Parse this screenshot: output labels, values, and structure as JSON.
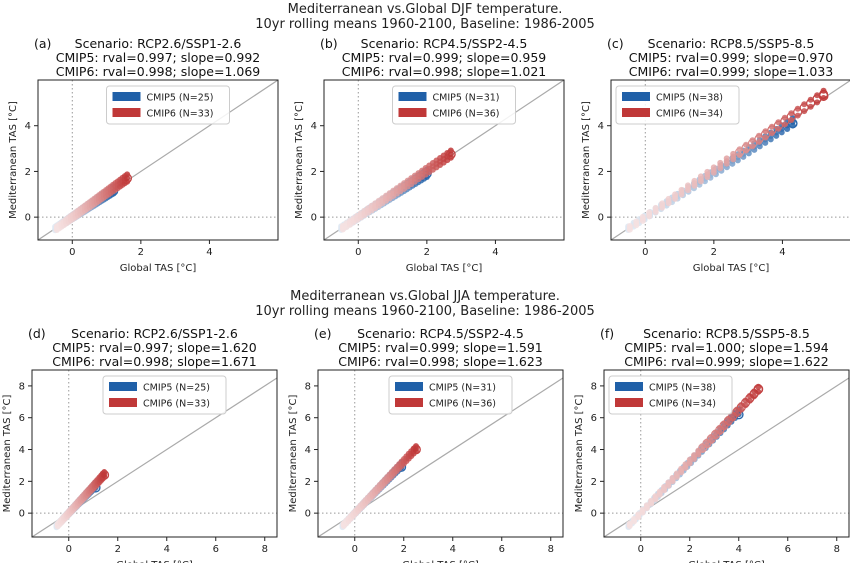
{
  "figure": {
    "rows": [
      {
        "title_line1": "Mediterranean vs.Global DJF temperature.",
        "title_line2": "10yr rolling means 1960-2100, Baseline: 1986-2005"
      },
      {
        "title_line1": "Mediterranean vs.Global JJA temperature.",
        "title_line2": "10yr rolling means 1960-2100, Baseline: 1986-2005"
      }
    ]
  },
  "colors": {
    "cmip5": "#2060a8",
    "cmip6": "#c03838",
    "diagonal": "#aaaaaa",
    "ref": "#999999"
  },
  "chart_data": [
    {
      "panel": "(a)",
      "type": "scatter",
      "title": "Scenario: RCP2.6/SSP1-2.6",
      "stat_cmip5": "CMIP5: rval=0.997; slope=0.992",
      "stat_cmip6": "CMIP6: rval=0.998; slope=1.069",
      "xlabel": "Global TAS [°C]",
      "ylabel": "Mediterranean TAS [°C]",
      "xlim": [
        -1,
        6
      ],
      "ylim": [
        -1,
        6
      ],
      "xticks": [
        0,
        2,
        4
      ],
      "yticks": [
        0,
        2,
        4
      ],
      "legend": "upper-center",
      "series": [
        {
          "name": "CMIP5 (N=25)",
          "x_range": [
            -0.5,
            1.2
          ],
          "slope": 0.992,
          "end": [
            1.2,
            1.15
          ]
        },
        {
          "name": "CMIP6 (N=33)",
          "x_range": [
            -0.45,
            1.6
          ],
          "slope": 1.069,
          "end": [
            1.6,
            1.7
          ]
        }
      ]
    },
    {
      "panel": "(b)",
      "type": "scatter",
      "title": "Scenario: RCP4.5/SSP2-4.5",
      "stat_cmip5": "CMIP5: rval=0.999; slope=0.959",
      "stat_cmip6": "CMIP6: rval=0.998; slope=1.021",
      "xlabel": "Global TAS [°C]",
      "ylabel": "Mediterranean TAS [°C]",
      "xlim": [
        -1,
        6
      ],
      "ylim": [
        -1,
        6
      ],
      "xticks": [
        0,
        2,
        4
      ],
      "yticks": [
        0,
        2,
        4
      ],
      "legend": "upper-center",
      "series": [
        {
          "name": "CMIP5 (N=31)",
          "x_range": [
            -0.5,
            2.0
          ],
          "slope": 0.959,
          "end": [
            2.0,
            1.9
          ]
        },
        {
          "name": "CMIP6 (N=36)",
          "x_range": [
            -0.45,
            2.7
          ],
          "slope": 1.021,
          "end": [
            2.7,
            2.75
          ]
        }
      ]
    },
    {
      "panel": "(c)",
      "type": "scatter",
      "title": "Scenario: RCP8.5/SSP5-8.5",
      "stat_cmip5": "CMIP5: rval=0.999; slope=0.970",
      "stat_cmip6": "CMIP6: rval=0.999; slope=1.033",
      "xlabel": "Global TAS [°C]",
      "ylabel": "Mediterranean TAS [°C]",
      "xlim": [
        -1,
        6
      ],
      "ylim": [
        -1,
        6
      ],
      "xticks": [
        0,
        2,
        4
      ],
      "yticks": [
        0,
        2,
        4
      ],
      "legend": "upper-left",
      "series": [
        {
          "name": "CMIP5 (N=38)",
          "x_range": [
            -0.5,
            4.3
          ],
          "slope": 0.97,
          "end": [
            4.3,
            4.1
          ]
        },
        {
          "name": "CMIP6 (N=34)",
          "x_range": [
            -0.45,
            5.2
          ],
          "slope": 1.033,
          "end": [
            5.2,
            5.3
          ]
        }
      ]
    },
    {
      "panel": "(d)",
      "type": "scatter",
      "title": "Scenario: RCP2.6/SSP1-2.6",
      "stat_cmip5": "CMIP5: rval=0.997; slope=1.620",
      "stat_cmip6": "CMIP6: rval=0.998; slope=1.671",
      "xlabel": "Global TAS [°C]",
      "ylabel": "Mediterranean TAS [°C]",
      "xlim": [
        -1.5,
        8.5
      ],
      "ylim": [
        -1.5,
        9
      ],
      "xticks": [
        0,
        2,
        4,
        6,
        8
      ],
      "yticks": [
        0,
        2,
        4,
        6,
        8
      ],
      "legend": "upper-center",
      "series": [
        {
          "name": "CMIP5 (N=25)",
          "x_range": [
            -0.5,
            1.1
          ],
          "slope": 1.62,
          "end": [
            1.1,
            1.6
          ]
        },
        {
          "name": "CMIP6 (N=33)",
          "x_range": [
            -0.45,
            1.45
          ],
          "slope": 1.671,
          "end": [
            1.45,
            2.4
          ]
        }
      ]
    },
    {
      "panel": "(e)",
      "type": "scatter",
      "title": "Scenario: RCP4.5/SSP2-4.5",
      "stat_cmip5": "CMIP5: rval=0.999; slope=1.591",
      "stat_cmip6": "CMIP6: rval=0.998; slope=1.623",
      "xlabel": "Global TAS [°C]",
      "ylabel": "Mediterranean TAS [°C]",
      "xlim": [
        -1.5,
        8.5
      ],
      "ylim": [
        -1.5,
        9
      ],
      "xticks": [
        0,
        2,
        4,
        6,
        8
      ],
      "yticks": [
        0,
        2,
        4,
        6,
        8
      ],
      "legend": "upper-center",
      "series": [
        {
          "name": "CMIP5 (N=31)",
          "x_range": [
            -0.5,
            1.9
          ],
          "slope": 1.591,
          "end": [
            1.9,
            2.9
          ]
        },
        {
          "name": "CMIP6 (N=36)",
          "x_range": [
            -0.45,
            2.5
          ],
          "slope": 1.623,
          "end": [
            2.5,
            4.0
          ]
        }
      ]
    },
    {
      "panel": "(f)",
      "type": "scatter",
      "title": "Scenario: RCP8.5/SSP5-8.5",
      "stat_cmip5": "CMIP5: rval=1.000; slope=1.594",
      "stat_cmip6": "CMIP6: rval=0.999; slope=1.622",
      "xlabel": "Global TAS [°C]",
      "ylabel": "Mediterranean TAS [°C]",
      "xlim": [
        -1.5,
        8.5
      ],
      "ylim": [
        -1.5,
        9
      ],
      "xticks": [
        0,
        2,
        4,
        6,
        8
      ],
      "yticks": [
        0,
        2,
        4,
        6,
        8
      ],
      "legend": "upper-left",
      "series": [
        {
          "name": "CMIP5 (N=38)",
          "x_range": [
            -0.5,
            4.0
          ],
          "slope": 1.594,
          "end": [
            4.0,
            6.2
          ]
        },
        {
          "name": "CMIP6 (N=34)",
          "x_range": [
            -0.45,
            4.8
          ],
          "slope": 1.622,
          "end": [
            4.8,
            7.8
          ]
        }
      ]
    }
  ]
}
